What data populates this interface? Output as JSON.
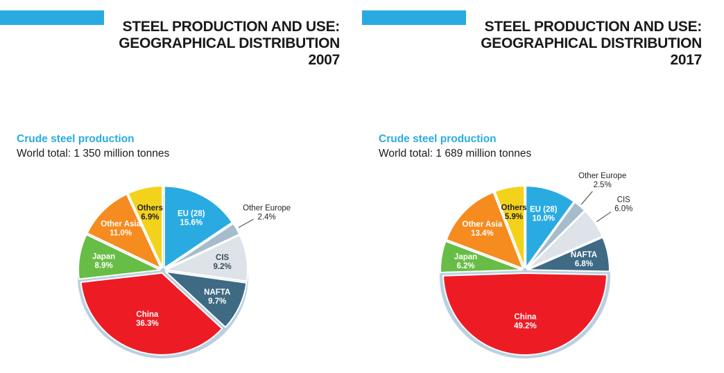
{
  "accent_color": "#29ABE2",
  "title_color": "#1A1A1A",
  "leader_line_color": "#58595B",
  "base_ellipse_color": "#B9D0DF",
  "panels": [
    {
      "title_line1": "STEEL PRODUCTION AND USE:",
      "title_line2": "GEOGRAPHICAL DISTRIBUTION",
      "year": "2007",
      "subtitle": "Crude steel production",
      "world_total": "World total: 1 350 million tonnes",
      "chart_data": {
        "type": "pie",
        "title": "Crude steel production 2007",
        "world_total_million_tonnes": 1350,
        "unit": "percent",
        "start_angle_deg": 0,
        "direction": "clockwise",
        "slices": [
          {
            "label": "EU (28)",
            "value": 15.6,
            "color": "#29ABE2",
            "text_color": "#ffffff",
            "label_position": "inside"
          },
          {
            "label": "Other Europe",
            "value": 2.4,
            "color": "#A5BCCC",
            "text_color": "#231F20",
            "label_position": "outside"
          },
          {
            "label": "CIS",
            "value": 9.2,
            "color": "#DDE3E8",
            "text_color": "#3B4A55",
            "label_position": "inside"
          },
          {
            "label": "NAFTA",
            "value": 9.7,
            "color": "#3F6A84",
            "text_color": "#ffffff",
            "label_position": "inside"
          },
          {
            "label": "China",
            "value": 36.3,
            "color": "#ED1C24",
            "text_color": "#ffffff",
            "label_position": "inside"
          },
          {
            "label": "Japan",
            "value": 8.9,
            "color": "#67BD45",
            "text_color": "#ffffff",
            "label_position": "inside"
          },
          {
            "label": "Other Asia",
            "value": 11.0,
            "color": "#F68B1F",
            "text_color": "#ffffff",
            "label_position": "inside"
          },
          {
            "label": "Others",
            "value": 6.9,
            "color": "#F3D21B",
            "text_color": "#231F20",
            "label_position": "inside"
          }
        ]
      }
    },
    {
      "title_line1": "STEEL PRODUCTION AND USE:",
      "title_line2": "GEOGRAPHICAL DISTRIBUTION",
      "year": "2017",
      "subtitle": "Crude steel production",
      "world_total": "World total: 1 689 million tonnes",
      "chart_data": {
        "type": "pie",
        "title": "Crude steel production 2017",
        "world_total_million_tonnes": 1689,
        "unit": "percent",
        "start_angle_deg": 0,
        "direction": "clockwise",
        "slices": [
          {
            "label": "EU (28)",
            "value": 10.0,
            "color": "#29ABE2",
            "text_color": "#ffffff",
            "label_position": "inside"
          },
          {
            "label": "Other Europe",
            "value": 2.5,
            "color": "#A5BCCC",
            "text_color": "#231F20",
            "label_position": "outside"
          },
          {
            "label": "CIS",
            "value": 6.0,
            "color": "#DDE3E8",
            "text_color": "#231F20",
            "label_position": "outside"
          },
          {
            "label": "NAFTA",
            "value": 6.8,
            "color": "#3F6A84",
            "text_color": "#ffffff",
            "label_position": "inside"
          },
          {
            "label": "China",
            "value": 49.2,
            "color": "#ED1C24",
            "text_color": "#ffffff",
            "label_position": "inside"
          },
          {
            "label": "Japan",
            "value": 6.2,
            "color": "#67BD45",
            "text_color": "#ffffff",
            "label_position": "inside"
          },
          {
            "label": "Other Asia",
            "value": 13.4,
            "color": "#F68B1F",
            "text_color": "#ffffff",
            "label_position": "inside"
          },
          {
            "label": "Others",
            "value": 5.9,
            "color": "#F3D21B",
            "text_color": "#231F20",
            "label_position": "inside"
          }
        ]
      }
    }
  ]
}
